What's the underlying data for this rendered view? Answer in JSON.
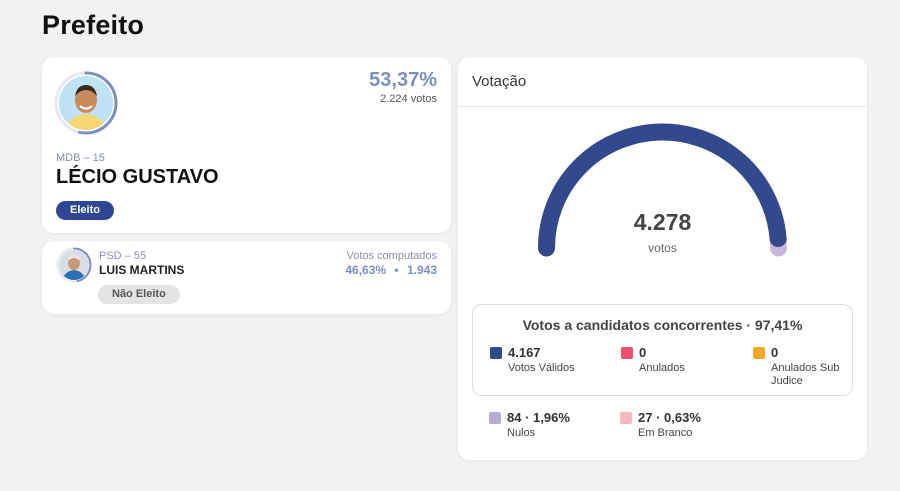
{
  "page": {
    "title": "Prefeito"
  },
  "winner": {
    "percent": "53,37%",
    "votes": "2.224 votos",
    "party": "MDB – 15",
    "name": "LÉCIO GUSTAVO",
    "status": "Eleito",
    "ring_fraction": 0.5337
  },
  "second": {
    "party": "PSD – 55",
    "name": "LUIS MARTINS",
    "label": "Votos computados",
    "percent": "46,63%",
    "separator": "•",
    "votes": "1.943",
    "status": "Não Eleito",
    "ring_fraction": 0.4663
  },
  "votacao": {
    "title": "Votação",
    "total": "4.278",
    "total_label": "votos",
    "gauge": {
      "valid_fraction": 0.974,
      "other_fraction": 0.026,
      "valid_color": "#34488e",
      "other_color": "#c9b8dc"
    },
    "summary_title": "Votos a candidatos concorrentes · 97,41%",
    "stats": [
      {
        "value": "4.167",
        "label": "Votos Válidos",
        "color": "#34488e"
      },
      {
        "value": "0",
        "label": "Anulados",
        "color": "#f0506e"
      },
      {
        "value": "0",
        "label": "Anulados Sub Judice",
        "color": "#f5a623"
      },
      {
        "value": "84 · 1,96%",
        "label": "Nulos",
        "color": "#b6acd4"
      },
      {
        "value": "27 · 0,63%",
        "label": "Em Branco",
        "color": "#f6b9c1"
      }
    ]
  }
}
